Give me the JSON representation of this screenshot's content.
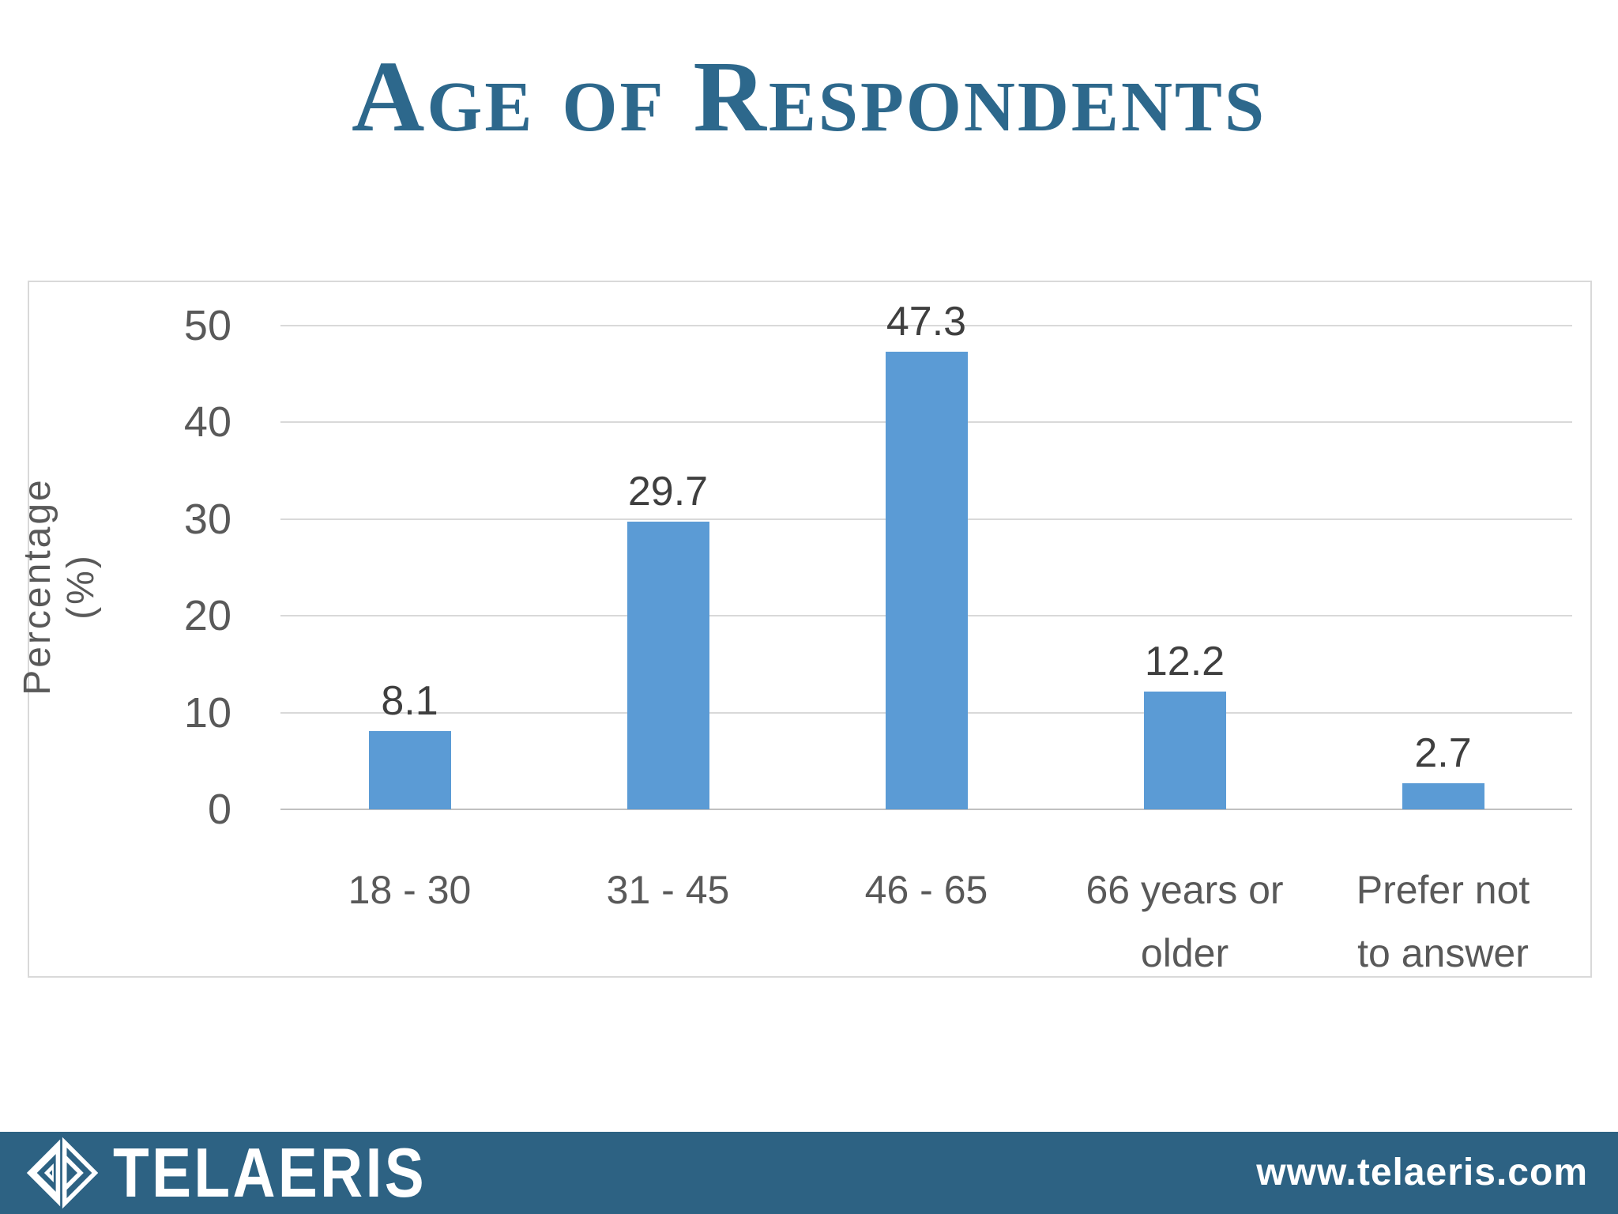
{
  "title": {
    "text": "Age of Respondents"
  },
  "chart_data": {
    "type": "bar",
    "title": "Age of Respondents",
    "categories": [
      "18 - 30",
      "31 - 45",
      "46 - 65",
      "66 years or\nolder",
      "Prefer not\nto answer"
    ],
    "values": [
      8.1,
      29.7,
      47.3,
      12.2,
      2.7
    ],
    "value_labels": [
      "8.1",
      "29.7",
      "47.3",
      "12.2",
      "2.7"
    ],
    "xlabel": "",
    "ylabel": "Percentage (%)",
    "ylim": [
      0,
      50
    ],
    "yticks": [
      0,
      10,
      20,
      30,
      40,
      50
    ],
    "grid": true,
    "legend": "none",
    "bar_color": "#5b9bd5"
  },
  "footer": {
    "brand": "TELAERIS",
    "url": "www.telaeris.com",
    "background": "#2d6283"
  },
  "colors": {
    "title_text": "#2d688c",
    "axis_text": "#595959",
    "data_label_text": "#3f3f3f",
    "gridline": "#d9d9d9",
    "axis_line": "#c0c0c0",
    "chart_border": "#d9d9d9",
    "footer_text": "#ffffff"
  }
}
